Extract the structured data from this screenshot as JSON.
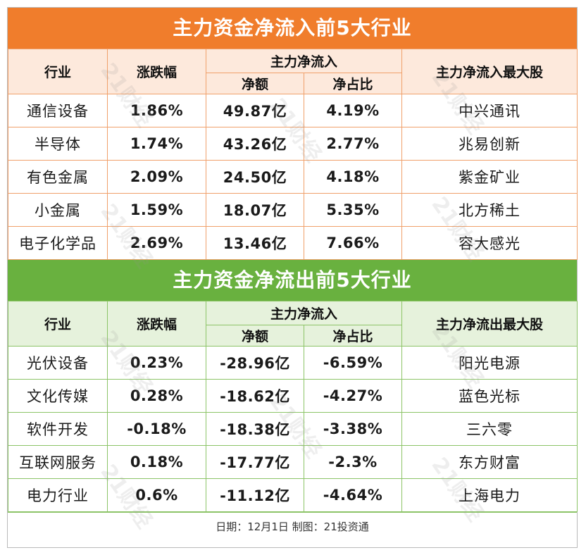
{
  "inflow": {
    "title": "主力资金净流入前5大行业",
    "headers": {
      "industry": "行业",
      "change": "涨跌幅",
      "group": "主力净流入",
      "net_amount": "净额",
      "net_ratio": "净占比",
      "top_stock": "主力净流入最大股"
    },
    "rows": [
      {
        "industry": "通信设备",
        "change": "1.86%",
        "net_amount": "49.87亿",
        "net_ratio": "4.19%",
        "top_stock": "中兴通讯"
      },
      {
        "industry": "半导体",
        "change": "1.74%",
        "net_amount": "43.26亿",
        "net_ratio": "2.77%",
        "top_stock": "兆易创新"
      },
      {
        "industry": "有色金属",
        "change": "2.09%",
        "net_amount": "24.50亿",
        "net_ratio": "4.18%",
        "top_stock": "紫金矿业"
      },
      {
        "industry": "小金属",
        "change": "1.59%",
        "net_amount": "18.07亿",
        "net_ratio": "5.35%",
        "top_stock": "北方稀土"
      },
      {
        "industry": "电子化学品",
        "change": "2.69%",
        "net_amount": "13.46亿",
        "net_ratio": "7.66%",
        "top_stock": "容大感光"
      }
    ]
  },
  "outflow": {
    "title": "主力资金净流出前5大行业",
    "headers": {
      "industry": "行业",
      "change": "涨跌幅",
      "group": "主力净流入",
      "net_amount": "净额",
      "net_ratio": "净占比",
      "top_stock": "主力净流出最大股"
    },
    "rows": [
      {
        "industry": "光伏设备",
        "change": "0.23%",
        "net_amount": "-28.96亿",
        "net_ratio": "-6.59%",
        "top_stock": "阳光电源"
      },
      {
        "industry": "文化传媒",
        "change": "0.28%",
        "net_amount": "-18.62亿",
        "net_ratio": "-4.27%",
        "top_stock": "蓝色光标"
      },
      {
        "industry": "软件开发",
        "change": "-0.18%",
        "net_amount": "-18.38亿",
        "net_ratio": "-3.38%",
        "top_stock": "三六零"
      },
      {
        "industry": "互联网服务",
        "change": "0.18%",
        "net_amount": "-17.77亿",
        "net_ratio": "-2.3%",
        "top_stock": "东方财富"
      },
      {
        "industry": "电力行业",
        "change": "0.6%",
        "net_amount": "-11.12亿",
        "net_ratio": "-4.64%",
        "top_stock": "上海电力"
      }
    ]
  },
  "footer": "日期：12月1日 制图：21投资通",
  "watermark": "21财经",
  "colors": {
    "inflow_accent": "#f07d2c",
    "outflow_accent": "#69b13f"
  }
}
